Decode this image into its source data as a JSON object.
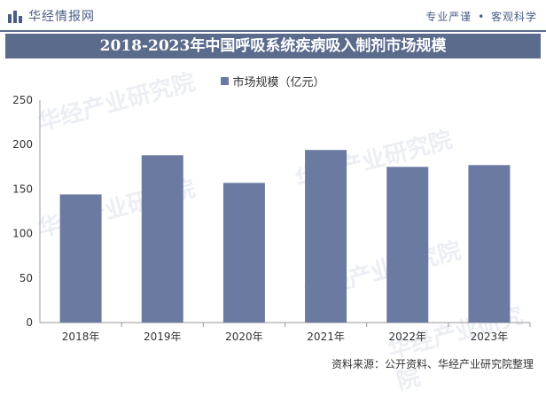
{
  "header": {
    "brand_name": "华经情报网",
    "tagline_left": "专业严谨",
    "tagline_right": "客观科学"
  },
  "watermark_text": "华经产业研究院",
  "colors": {
    "bar": "#6b7aa1",
    "band": "#5b6b8c",
    "axis": "#999999"
  },
  "chart_data": {
    "type": "bar",
    "title": "2018-2023年中国呼吸系统疾病吸入制剂市场规模",
    "categories": [
      "2018年",
      "2019年",
      "2020年",
      "2021年",
      "2022年",
      "2023年"
    ],
    "series": [
      {
        "name": "市场规模（亿元）",
        "values": [
          144,
          188,
          157,
          194,
          175,
          177
        ]
      }
    ],
    "ylim": [
      0,
      250
    ],
    "yticks": [
      0,
      50,
      100,
      150,
      200,
      250
    ],
    "grid": false,
    "legend": "top-center"
  },
  "footer": {
    "source": "资料来源：公开资料、华经产业研究院整理"
  }
}
